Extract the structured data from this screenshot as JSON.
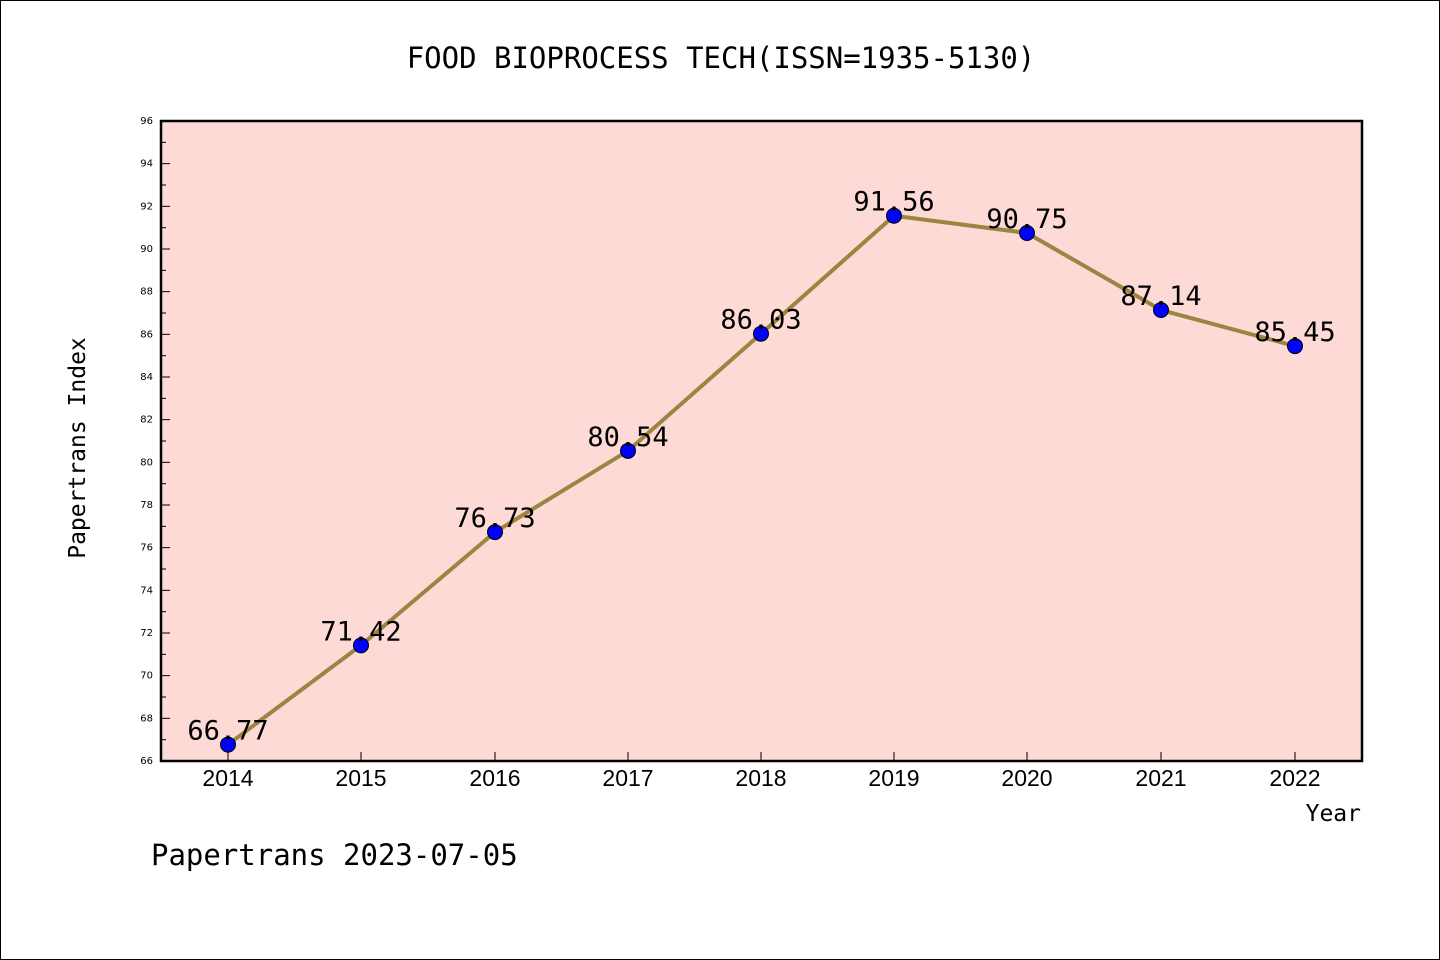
{
  "chart_data": {
    "type": "line",
    "title": "FOOD BIOPROCESS TECH(ISSN=1935-5130)",
    "xlabel": "Year",
    "ylabel": "Papertrans Index",
    "categories": [
      "2014",
      "2015",
      "2016",
      "2017",
      "2018",
      "2019",
      "2020",
      "2021",
      "2022"
    ],
    "series": [
      {
        "values": [
          66.77,
          71.42,
          76.73,
          80.54,
          86.03,
          91.56,
          90.75,
          87.14,
          85.45
        ],
        "labels": [
          "66.77",
          "71.42",
          "76.73",
          "80.54",
          "86.03",
          "91.56",
          "90.75",
          "87.14",
          "85.45"
        ]
      }
    ],
    "ylim": [
      66,
      96
    ],
    "yticks": [
      "66",
      "68",
      "70",
      "72",
      "74",
      "76",
      "78",
      "80",
      "82",
      "84",
      "86",
      "88",
      "90",
      "92",
      "94",
      "96"
    ],
    "grid": false,
    "colors": {
      "plot_background": "#fddad6",
      "line": "#9b8540",
      "marker": "#0000ff",
      "axis": "#000000"
    }
  },
  "footer": "Papertrans 2023-07-05"
}
